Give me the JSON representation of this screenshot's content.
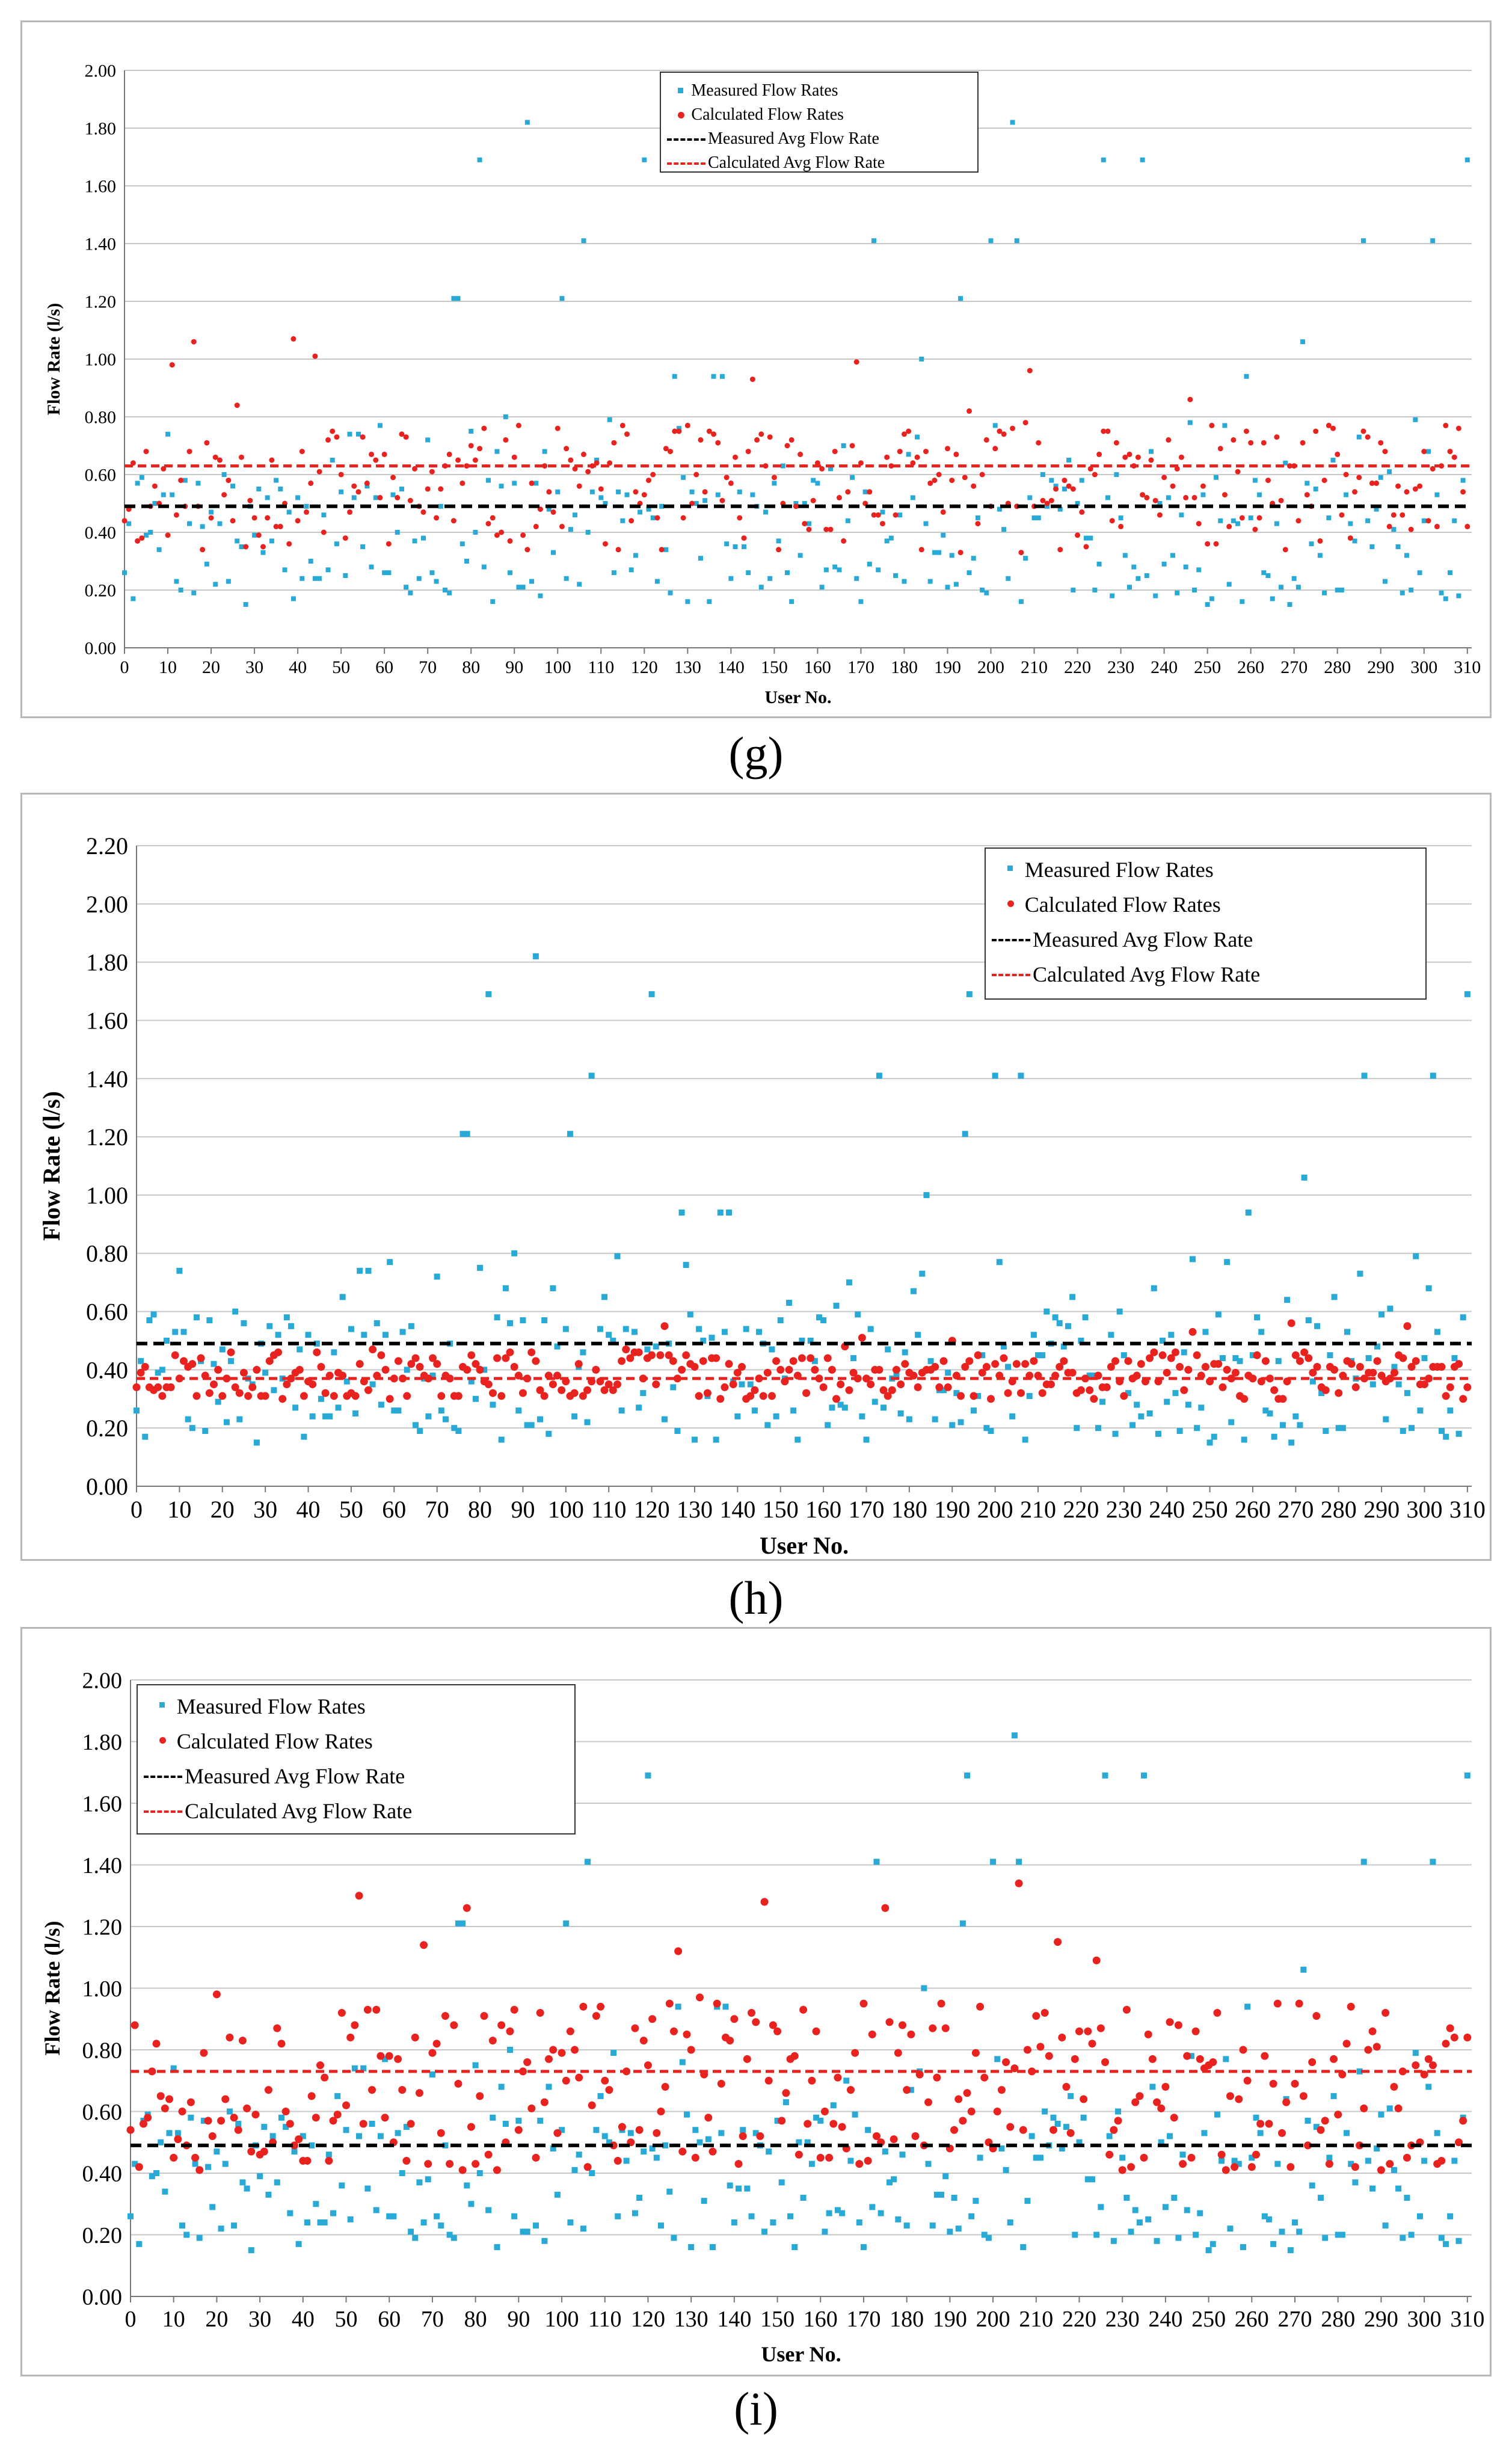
{
  "chart_data": [
    {
      "panel": "(g)",
      "type": "scatter",
      "xlabel": "User No.",
      "ylabel": "Flow Rate (l/s)",
      "xlim": [
        0,
        311
      ],
      "ylim": [
        0,
        2
      ],
      "xticks": [
        "0",
        "10",
        "20",
        "30",
        "40",
        "50",
        "60",
        "70",
        "80",
        "90",
        "100",
        "110",
        "120",
        "130",
        "140",
        "150",
        "160",
        "170",
        "180",
        "190",
        "200",
        "210",
        "220",
        "230",
        "240",
        "250",
        "260",
        "270",
        "280",
        "290",
        "300",
        "310"
      ],
      "yticks": [
        "0.00",
        "0.20",
        "0.40",
        "0.60",
        "0.80",
        "1.00",
        "1.20",
        "1.40",
        "1.60",
        "1.80",
        "2.00"
      ],
      "legend": [
        "Measured Flow Rates",
        "Calculated Flow Rates",
        "Measured Avg Flow Rate",
        "Calculated Avg Flow Rate"
      ],
      "measured_avg": 0.49,
      "calculated_avg": 0.63,
      "calc_gen": {
        "base": 0.55,
        "amp": 0.22,
        "seed": 11
      }
    },
    {
      "panel": "(h)",
      "type": "scatter",
      "xlabel": "User No.",
      "ylabel": "Flow Rate  (l/s)",
      "xlim": [
        0,
        311
      ],
      "ylim": [
        0,
        2.2
      ],
      "xticks": [
        "0",
        "10",
        "20",
        "30",
        "40",
        "50",
        "60",
        "70",
        "80",
        "90",
        "100",
        "110",
        "120",
        "130",
        "140",
        "150",
        "160",
        "170",
        "180",
        "190",
        "200",
        "210",
        "220",
        "230",
        "240",
        "250",
        "260",
        "270",
        "280",
        "290",
        "300",
        "310"
      ],
      "yticks": [
        "0.00",
        "0.20",
        "0.40",
        "0.60",
        "0.80",
        "1.00",
        "1.20",
        "1.40",
        "1.60",
        "1.80",
        "2.00",
        "2.20"
      ],
      "legend": [
        "Measured Flow Rates",
        "Calculated Flow Rates",
        "Measured Avg Flow Rate",
        "Calculated Avg Flow Rate"
      ],
      "measured_avg": 0.49,
      "calculated_avg": 0.37,
      "calc_gen": {
        "base": 0.38,
        "amp": 0.08,
        "seed": 23
      }
    },
    {
      "panel": "(i)",
      "type": "scatter",
      "xlabel": "User No.",
      "ylabel": "Flow Rate (l/s)",
      "xlim": [
        0,
        311
      ],
      "ylim": [
        0,
        2
      ],
      "xticks": [
        "0",
        "10",
        "20",
        "30",
        "40",
        "50",
        "60",
        "70",
        "80",
        "90",
        "100",
        "110",
        "120",
        "130",
        "140",
        "150",
        "160",
        "170",
        "180",
        "190",
        "200",
        "210",
        "220",
        "230",
        "240",
        "250",
        "260",
        "270",
        "280",
        "290",
        "300",
        "310"
      ],
      "yticks": [
        "0.00",
        "0.20",
        "0.40",
        "0.60",
        "0.80",
        "1.00",
        "1.20",
        "1.40",
        "1.60",
        "1.80",
        "2.00"
      ],
      "legend": [
        "Measured Flow Rates",
        "Calculated Flow Rates",
        "Measured Avg Flow Rate",
        "Calculated Avg Flow Rate"
      ],
      "measured_avg": 0.49,
      "calculated_avg": 0.73,
      "calc_gen": {
        "base": 0.68,
        "amp": 0.28,
        "seed": 37
      }
    }
  ],
  "measured_high_points": [
    [
      82,
      1.69
    ],
    [
      93,
      1.82
    ],
    [
      120,
      1.69
    ],
    [
      173,
      1.41
    ],
    [
      194,
      1.69
    ],
    [
      200,
      1.41
    ],
    [
      205,
      1.82
    ],
    [
      206,
      1.41
    ],
    [
      226,
      1.69
    ],
    [
      235,
      1.69
    ],
    [
      286,
      1.41
    ],
    [
      302,
      1.41
    ],
    [
      310,
      1.69
    ],
    [
      106,
      1.41
    ],
    [
      101,
      1.21
    ],
    [
      193,
      1.21
    ],
    [
      76,
      1.21
    ],
    [
      77,
      1.21
    ],
    [
      184,
      1.0
    ],
    [
      127,
      0.94
    ],
    [
      136,
      0.94
    ],
    [
      138,
      0.94
    ],
    [
      272,
      1.06
    ],
    [
      259,
      0.94
    ]
  ],
  "measured_seed": 7,
  "measured_count": 311,
  "colors": {
    "measured": "#29a9d6",
    "calculated": "#e8231f",
    "measured_avg": "#000000",
    "calculated_avg": "#e8231f",
    "grid": "#c8c8c8"
  },
  "panel_labels": [
    "(g)",
    "(h)",
    "(i)"
  ]
}
